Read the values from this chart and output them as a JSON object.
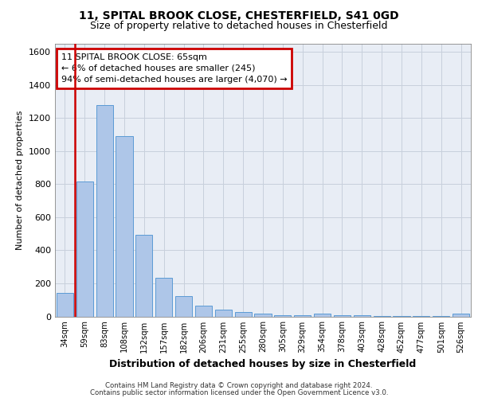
{
  "title1": "11, SPITAL BROOK CLOSE, CHESTERFIELD, S41 0GD",
  "title2": "Size of property relative to detached houses in Chesterfield",
  "xlabel": "Distribution of detached houses by size in Chesterfield",
  "ylabel": "Number of detached properties",
  "footnote1": "Contains HM Land Registry data © Crown copyright and database right 2024.",
  "footnote2": "Contains public sector information licensed under the Open Government Licence v3.0.",
  "annotation_line1": "11 SPITAL BROOK CLOSE: 65sqm",
  "annotation_line2": "← 6% of detached houses are smaller (245)",
  "annotation_line3": "94% of semi-detached houses are larger (4,070) →",
  "bar_color": "#aec6e8",
  "bar_edge_color": "#5b9bd5",
  "vline_color": "#cc0000",
  "annotation_box_color": "#cc0000",
  "grid_color": "#c8d0dc",
  "bg_color": "#e8edf5",
  "categories": [
    "34sqm",
    "59sqm",
    "83sqm",
    "108sqm",
    "132sqm",
    "157sqm",
    "182sqm",
    "206sqm",
    "231sqm",
    "255sqm",
    "280sqm",
    "305sqm",
    "329sqm",
    "354sqm",
    "378sqm",
    "403sqm",
    "428sqm",
    "452sqm",
    "477sqm",
    "501sqm",
    "526sqm"
  ],
  "values": [
    140,
    815,
    1280,
    1090,
    495,
    235,
    125,
    65,
    40,
    27,
    15,
    8,
    5,
    15,
    5,
    5,
    2,
    2,
    2,
    2,
    15
  ],
  "ylim": [
    0,
    1650
  ],
  "yticks": [
    0,
    200,
    400,
    600,
    800,
    1000,
    1200,
    1400,
    1600
  ],
  "vline_x_index": 1,
  "figsize": [
    6.0,
    5.0
  ],
  "dpi": 100
}
